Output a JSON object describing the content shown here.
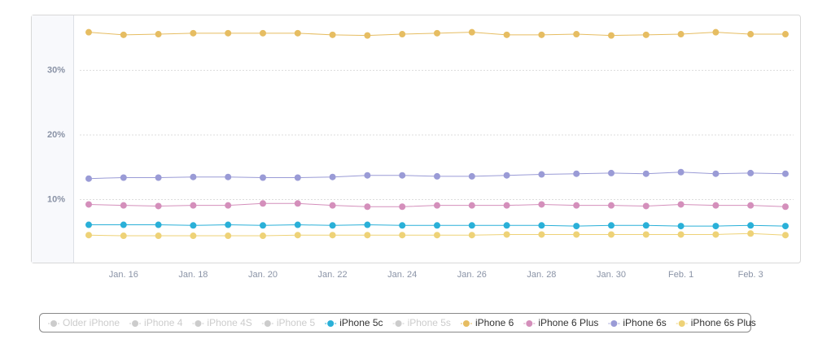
{
  "chart_data": {
    "type": "line",
    "categories": [
      null,
      "Jan. 16",
      null,
      "Jan. 18",
      null,
      "Jan. 20",
      null,
      "Jan. 22",
      null,
      "Jan. 24",
      null,
      "Jan. 26",
      null,
      "Jan. 28",
      null,
      "Jan. 30",
      null,
      "Feb. 1",
      null,
      "Feb. 3",
      null
    ],
    "ylim": [
      0,
      38.5
    ],
    "yticks": [
      {
        "value": 10,
        "label": "10%"
      },
      {
        "value": 20,
        "label": "20%"
      },
      {
        "value": 30,
        "label": "30%"
      }
    ],
    "grid": true,
    "legend": "bottom",
    "series": [
      {
        "name": "Older iPhone",
        "color": "#cccccc",
        "visible": false,
        "values": [
          null,
          null,
          null,
          null,
          null,
          null,
          null,
          null,
          null,
          null,
          null,
          null,
          null,
          null,
          null,
          null,
          null,
          null,
          null,
          null,
          null
        ]
      },
      {
        "name": "iPhone 4",
        "color": "#cccccc",
        "visible": false,
        "values": [
          null,
          null,
          null,
          null,
          null,
          null,
          null,
          null,
          null,
          null,
          null,
          null,
          null,
          null,
          null,
          null,
          null,
          null,
          null,
          null,
          null
        ]
      },
      {
        "name": "iPhone 4S",
        "color": "#cccccc",
        "visible": false,
        "values": [
          null,
          null,
          null,
          null,
          null,
          null,
          null,
          null,
          null,
          null,
          null,
          null,
          null,
          null,
          null,
          null,
          null,
          null,
          null,
          null,
          null
        ]
      },
      {
        "name": "iPhone 5",
        "color": "#cccccc",
        "visible": false,
        "values": [
          null,
          null,
          null,
          null,
          null,
          null,
          null,
          null,
          null,
          null,
          null,
          null,
          null,
          null,
          null,
          null,
          null,
          null,
          null,
          null,
          null
        ]
      },
      {
        "name": "iPhone 5c",
        "color": "#2ab0d8",
        "visible": true,
        "values": [
          6.1,
          6.1,
          6.1,
          6,
          6.1,
          6,
          6.1,
          6,
          6.1,
          6,
          6,
          6,
          6,
          6,
          5.9,
          6,
          6,
          5.9,
          5.9,
          6,
          5.9
        ]
      },
      {
        "name": "iPhone 5s",
        "color": "#cccccc",
        "visible": false,
        "values": [
          null,
          null,
          null,
          null,
          null,
          null,
          null,
          null,
          null,
          null,
          null,
          null,
          null,
          null,
          null,
          null,
          null,
          null,
          null,
          null,
          null
        ]
      },
      {
        "name": "iPhone 6",
        "color": "#e6bd62",
        "visible": true,
        "values": [
          35.9,
          35.5,
          35.6,
          35.75,
          35.75,
          35.75,
          35.75,
          35.5,
          35.4,
          35.6,
          35.75,
          35.9,
          35.5,
          35.5,
          35.6,
          35.4,
          35.5,
          35.6,
          35.9,
          35.6,
          35.6
        ]
      },
      {
        "name": "iPhone 6 Plus",
        "color": "#d48fbb",
        "visible": true,
        "values": [
          9.25,
          9.1,
          9,
          9.1,
          9.1,
          9.4,
          9.4,
          9.1,
          8.9,
          8.9,
          9.1,
          9.1,
          9.1,
          9.25,
          9.1,
          9.1,
          9,
          9.25,
          9.1,
          9.1,
          8.9
        ]
      },
      {
        "name": "iPhone 6s",
        "color": "#9a9bd6",
        "visible": true,
        "values": [
          13.25,
          13.4,
          13.4,
          13.5,
          13.5,
          13.4,
          13.4,
          13.5,
          13.75,
          13.75,
          13.6,
          13.6,
          13.75,
          13.9,
          14,
          14.1,
          14,
          14.25,
          14,
          14.1,
          14
        ]
      },
      {
        "name": "iPhone 6s Plus",
        "color": "#eed277",
        "visible": true,
        "values": [
          4.5,
          4.4,
          4.4,
          4.4,
          4.4,
          4.4,
          4.5,
          4.5,
          4.5,
          4.5,
          4.5,
          4.5,
          4.6,
          4.6,
          4.6,
          4.6,
          4.6,
          4.6,
          4.6,
          4.75,
          4.5
        ]
      }
    ]
  }
}
